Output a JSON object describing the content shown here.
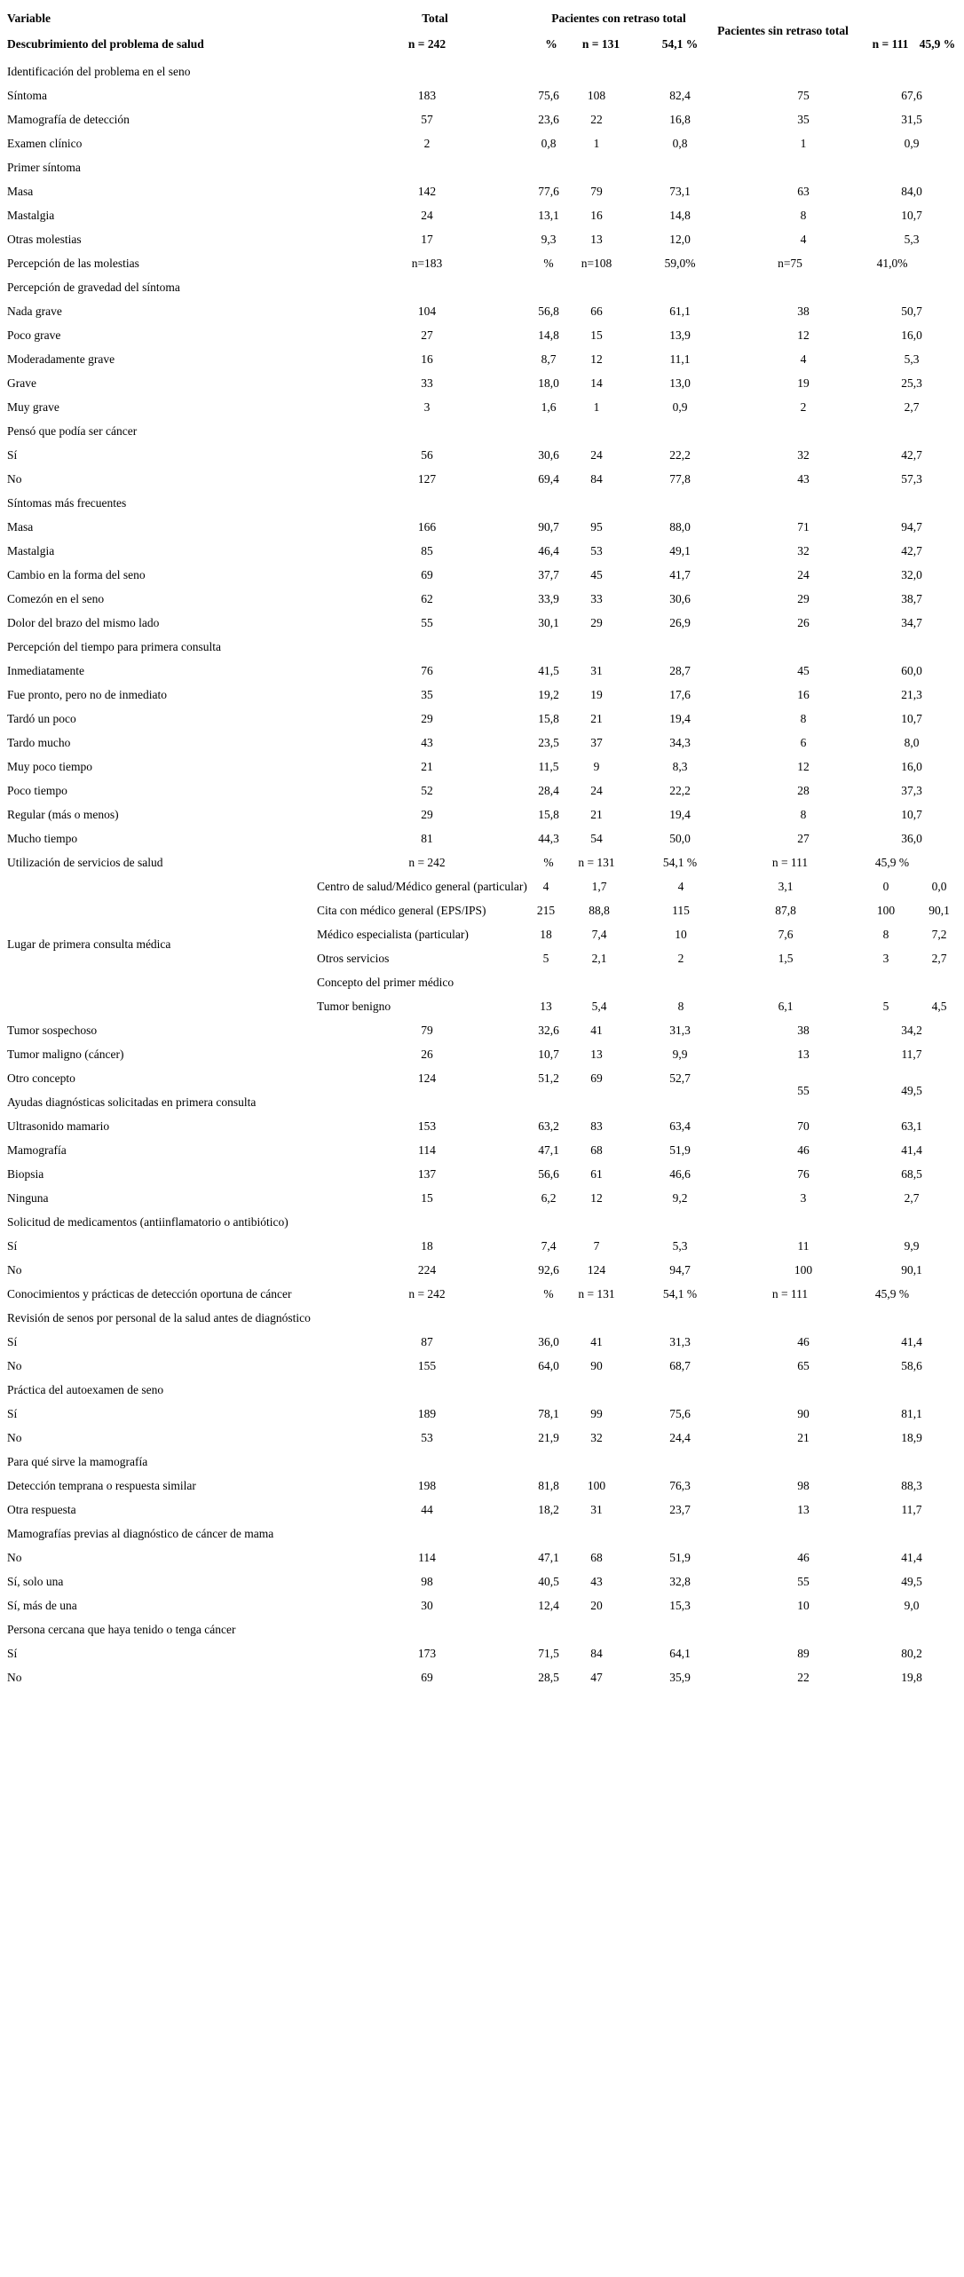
{
  "table": {
    "header": {
      "col_variable": "Variable",
      "col_total": "Total",
      "col_con_retraso": "Pacientes con retraso total",
      "col_sin_retraso": "Pacientes sin retraso total",
      "row2_label": "Descubrimiento del problema de salud",
      "row2_values": [
        "n = 242",
        "%",
        "n = 131",
        "54,1 %"
      ],
      "row2_right": [
        "n = 111",
        "45,9 %"
      ]
    },
    "rows": [
      {
        "t": "s",
        "label": "Identificación del problema en el seno"
      },
      {
        "t": "d",
        "label": "Síntoma",
        "v": [
          "183",
          "75,6",
          "108",
          "82,4",
          "75",
          "67,6"
        ]
      },
      {
        "t": "d",
        "label": "Mamografía de detección",
        "v": [
          "57",
          "23,6",
          "22",
          "16,8",
          "35",
          "31,5"
        ]
      },
      {
        "t": "d",
        "label": "Examen clínico",
        "v": [
          "2",
          "0,8",
          "1",
          "0,8",
          "1",
          "0,9"
        ]
      },
      {
        "t": "s",
        "label": "Primer síntoma"
      },
      {
        "t": "d",
        "label": "Masa",
        "v": [
          "142",
          "77,6",
          "79",
          "73,1",
          "63",
          "84,0"
        ]
      },
      {
        "t": "d",
        "label": "Mastalgia",
        "v": [
          "24",
          "13,1",
          "16",
          "14,8",
          "8",
          "10,7"
        ]
      },
      {
        "t": "d",
        "label": "Otras molestias",
        "v": [
          "17",
          "9,3",
          "13",
          "12,0",
          "4",
          "5,3"
        ]
      },
      {
        "t": "n",
        "label": "Percepción de las molestias",
        "v": [
          "n=183",
          "%",
          "n=108",
          "59,0%",
          "n=75",
          "41,0%"
        ]
      },
      {
        "t": "s",
        "label": "Percepción de gravedad del síntoma"
      },
      {
        "t": "d",
        "label": "Nada grave",
        "v": [
          "104",
          "56,8",
          "66",
          "61,1",
          "38",
          "50,7"
        ]
      },
      {
        "t": "d",
        "label": "Poco grave",
        "v": [
          "27",
          "14,8",
          "15",
          "13,9",
          "12",
          "16,0"
        ]
      },
      {
        "t": "d",
        "label": "Moderadamente grave",
        "v": [
          "16",
          "8,7",
          "12",
          "11,1",
          "4",
          "5,3"
        ]
      },
      {
        "t": "d",
        "label": "Grave",
        "v": [
          "33",
          "18,0",
          "14",
          "13,0",
          "19",
          "25,3"
        ]
      },
      {
        "t": "d",
        "label": "Muy grave",
        "v": [
          "3",
          "1,6",
          "1",
          "0,9",
          "2",
          "2,7"
        ]
      },
      {
        "t": "s",
        "label": "Pensó que podía ser cáncer"
      },
      {
        "t": "d",
        "label": "Sí",
        "v": [
          "56",
          "30,6",
          "24",
          "22,2",
          "32",
          "42,7"
        ]
      },
      {
        "t": "d",
        "label": "No",
        "v": [
          "127",
          "69,4",
          "84",
          "77,8",
          "43",
          "57,3"
        ]
      },
      {
        "t": "s",
        "label": "Síntomas más frecuentes"
      },
      {
        "t": "d",
        "label": "Masa",
        "v": [
          "166",
          "90,7",
          "95",
          "88,0",
          "71",
          "94,7"
        ]
      },
      {
        "t": "d",
        "label": "Mastalgia",
        "v": [
          "85",
          "46,4",
          "53",
          "49,1",
          "32",
          "42,7"
        ]
      },
      {
        "t": "d",
        "label": "Cambio en la forma del seno",
        "v": [
          "69",
          "37,7",
          "45",
          "41,7",
          "24",
          "32,0"
        ]
      },
      {
        "t": "d",
        "label": "Comezón en el seno",
        "v": [
          "62",
          "33,9",
          "33",
          "30,6",
          "29",
          "38,7"
        ]
      },
      {
        "t": "d",
        "label": "Dolor del brazo del mismo lado",
        "v": [
          "55",
          "30,1",
          "29",
          "26,9",
          "26",
          "34,7"
        ]
      },
      {
        "t": "s",
        "label": "Percepción del tiempo para primera consulta"
      },
      {
        "t": "d",
        "label": "Inmediatamente",
        "v": [
          "76",
          "41,5",
          "31",
          "28,7",
          "45",
          "60,0"
        ]
      },
      {
        "t": "d",
        "label": "Fue pronto, pero no de inmediato",
        "v": [
          "35",
          "19,2",
          "19",
          "17,6",
          "16",
          "21,3"
        ]
      },
      {
        "t": "d",
        "label": "Tardó un poco",
        "v": [
          "29",
          "15,8",
          "21",
          "19,4",
          "8",
          "10,7"
        ]
      },
      {
        "t": "d",
        "label": "Tardo mucho",
        "v": [
          "43",
          "23,5",
          "37",
          "34,3",
          "6",
          "8,0"
        ]
      },
      {
        "t": "d",
        "label": "Muy poco tiempo",
        "v": [
          "21",
          "11,5",
          "9",
          "8,3",
          "12",
          "16,0"
        ]
      },
      {
        "t": "d",
        "label": "Poco tiempo",
        "v": [
          "52",
          "28,4",
          "24",
          "22,2",
          "28",
          "37,3"
        ]
      },
      {
        "t": "d",
        "label": "Regular (más o menos)",
        "v": [
          "29",
          "15,8",
          "21",
          "19,4",
          "8",
          "10,7"
        ]
      },
      {
        "t": "d",
        "label": "Mucho tiempo",
        "v": [
          "81",
          "44,3",
          "54",
          "50,0",
          "27",
          "36,0"
        ]
      },
      {
        "t": "n",
        "label": "Utilización de servicios de salud",
        "v": [
          "n = 242",
          "%",
          "n = 131",
          "54,1 %",
          "n = 111",
          "45,9 %"
        ]
      },
      {
        "t": "sub",
        "label": "Centro de salud/Médico general (particular)",
        "v": [
          "4",
          "1,7",
          "4",
          "3,1",
          "0",
          "0,0"
        ]
      },
      {
        "t": "sub",
        "label": "Cita con médico general (EPS/IPS)",
        "v": [
          "215",
          "88,8",
          "115",
          "87,8",
          "100",
          "90,1"
        ]
      },
      {
        "t": "sub",
        "label": "Médico especialista (particular)",
        "v": [
          "18",
          "7,4",
          "10",
          "7,6",
          "8",
          "7,2"
        ]
      },
      {
        "t": "float",
        "label": "Lugar de primera consulta médica"
      },
      {
        "t": "sub",
        "label": "Otros servicios",
        "v": [
          "5",
          "2,1",
          "2",
          "1,5",
          "3",
          "2,7"
        ]
      },
      {
        "t": "subs",
        "label": "Concepto del primer médico"
      },
      {
        "t": "sub",
        "label": "Tumor benigno",
        "v": [
          "13",
          "5,4",
          "8",
          "6,1",
          "5",
          "4,5"
        ]
      },
      {
        "t": "d",
        "label": "Tumor sospechoso",
        "v": [
          "79",
          "32,6",
          "41",
          "31,3",
          "38",
          "34,2"
        ]
      },
      {
        "t": "d",
        "label": "Tumor maligno (cáncer)",
        "v": [
          "26",
          "10,7",
          "13",
          "9,9",
          "13",
          "11,7"
        ]
      },
      {
        "t": "dd",
        "label": "Otro concepto",
        "v": [
          "124",
          "51,2",
          "69",
          "52,7"
        ],
        "drop": [
          "55",
          "49,5"
        ]
      },
      {
        "t": "s",
        "label": "Ayudas diagnósticas solicitadas en primera consulta"
      },
      {
        "t": "d",
        "label": "Ultrasonido mamario",
        "v": [
          "153",
          "63,2",
          "83",
          "63,4",
          "70",
          "63,1"
        ]
      },
      {
        "t": "d",
        "label": "Mamografía",
        "v": [
          "114",
          "47,1",
          "68",
          "51,9",
          "46",
          "41,4"
        ]
      },
      {
        "t": "d",
        "label": "Biopsia",
        "v": [
          "137",
          "56,6",
          "61",
          "46,6",
          "76",
          "68,5"
        ]
      },
      {
        "t": "d",
        "label": "Ninguna",
        "v": [
          "15",
          "6,2",
          "12",
          "9,2",
          "3",
          "2,7"
        ]
      },
      {
        "t": "s",
        "label": "Solicitud de medicamentos (antiinflamatorio o antibiótico)"
      },
      {
        "t": "d",
        "label": "Sí",
        "v": [
          "18",
          "7,4",
          "7",
          "5,3",
          "11",
          "9,9"
        ]
      },
      {
        "t": "d",
        "label": "No",
        "v": [
          "224",
          "92,6",
          "124",
          "94,7",
          "100",
          "90,1"
        ]
      },
      {
        "t": "n",
        "label": "Conocimientos y prácticas de detección oportuna de cáncer",
        "v": [
          "n = 242",
          "%",
          "n = 131",
          "54,1 %",
          "n = 111",
          "45,9 %"
        ]
      },
      {
        "t": "s",
        "label": "Revisión de senos por personal de la salud antes de diagnóstico"
      },
      {
        "t": "d",
        "label": "Sí",
        "v": [
          "87",
          "36,0",
          "41",
          "31,3",
          "46",
          "41,4"
        ]
      },
      {
        "t": "d",
        "label": "No",
        "v": [
          "155",
          "64,0",
          "90",
          "68,7",
          "65",
          "58,6"
        ]
      },
      {
        "t": "s",
        "label": "Práctica del autoexamen de seno"
      },
      {
        "t": "d",
        "label": "Sí",
        "v": [
          "189",
          "78,1",
          "99",
          "75,6",
          "90",
          "81,1"
        ]
      },
      {
        "t": "d",
        "label": "No",
        "v": [
          "53",
          "21,9",
          "32",
          "24,4",
          "21",
          "18,9"
        ]
      },
      {
        "t": "s",
        "label": "Para qué sirve la mamografía"
      },
      {
        "t": "d",
        "label": "Detección temprana o respuesta similar",
        "v": [
          "198",
          "81,8",
          "100",
          "76,3",
          "98",
          "88,3"
        ]
      },
      {
        "t": "d",
        "label": "Otra respuesta",
        "v": [
          "44",
          "18,2",
          "31",
          "23,7",
          "13",
          "11,7"
        ]
      },
      {
        "t": "s",
        "label": "Mamografías previas al diagnóstico de cáncer de mama"
      },
      {
        "t": "d",
        "label": "No",
        "v": [
          "114",
          "47,1",
          "68",
          "51,9",
          "46",
          "41,4"
        ]
      },
      {
        "t": "d",
        "label": "Sí, solo una",
        "v": [
          "98",
          "40,5",
          "43",
          "32,8",
          "55",
          "49,5"
        ]
      },
      {
        "t": "d",
        "label": "Sí, más de una",
        "v": [
          "30",
          "12,4",
          "20",
          "15,3",
          "10",
          "9,0"
        ]
      },
      {
        "t": "s",
        "label": "Persona cercana que haya tenido o tenga cáncer"
      },
      {
        "t": "d",
        "label": "Sí",
        "v": [
          "173",
          "71,5",
          "84",
          "64,1",
          "89",
          "80,2"
        ]
      },
      {
        "t": "d",
        "label": "No",
        "v": [
          "69",
          "28,5",
          "47",
          "35,9",
          "22",
          "19,8"
        ]
      }
    ]
  }
}
